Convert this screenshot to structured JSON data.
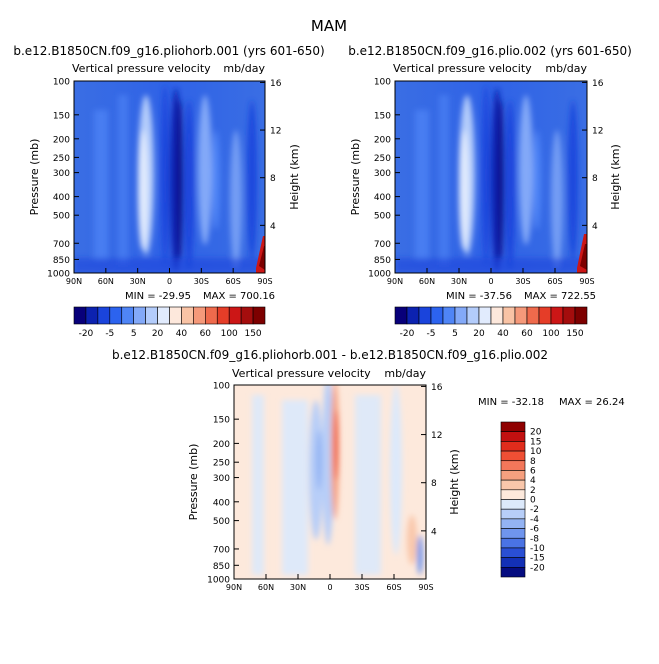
{
  "figure_title": "MAM",
  "colorbar_small": {
    "labels": [
      "-20",
      "-5",
      "5",
      "20",
      "40",
      "60",
      "100",
      "150"
    ],
    "colors": [
      "#08007a",
      "#0c22b0",
      "#1a44dc",
      "#2c63ef",
      "#4f85f6",
      "#83a9f8",
      "#b3ccfb",
      "#e1ebfd",
      "#fde8dc",
      "#f9c3a5",
      "#f5997a",
      "#ef6a4c",
      "#e53d28",
      "#cc1616",
      "#a40d0d",
      "#7d0000"
    ]
  },
  "colorbar_diff": {
    "labels": [
      "20",
      "15",
      "10",
      "8",
      "6",
      "4",
      "2",
      "0",
      "-2",
      "-4",
      "-6",
      "-8",
      "-10",
      "-15",
      "-20"
    ],
    "colors": [
      "#8f0000",
      "#c21010",
      "#e02c1c",
      "#ef4f34",
      "#f3775a",
      "#f6a07f",
      "#f9c7ab",
      "#fde9dc",
      "#dce9fb",
      "#b7cef8",
      "#93b3f3",
      "#6f95ee",
      "#4a73e4",
      "#2a4fd4",
      "#1330b6",
      "#050c80"
    ]
  },
  "chart_data": [
    {
      "type": "heatmap",
      "title": "b.e12.B1850CN.f09_g16.pliohorb.001 (yrs 601-650)",
      "subtitle": "Vertical pressure velocity",
      "units": "mb/day",
      "xlabel": "",
      "ylabel": "Pressure (mb)",
      "ylabel_right": "Height (km)",
      "x_ticks": [
        "90N",
        "60N",
        "30N",
        "0",
        "30S",
        "60S",
        "90S"
      ],
      "y_ticks": [
        100,
        150,
        200,
        250,
        300,
        400,
        500,
        700,
        850,
        1000
      ],
      "y_right_ticks": [
        4,
        8,
        12,
        16
      ],
      "min_label": "MIN = -29.95",
      "max_label": "MAX = 700.16",
      "min": -29.95,
      "max": 700.16,
      "ylim": [
        1000,
        100
      ],
      "scale_y": "log"
    },
    {
      "type": "heatmap",
      "title": "b.e12.B1850CN.f09_g16.plio.002 (yrs 601-650)",
      "subtitle": "Vertical pressure velocity",
      "units": "mb/day",
      "xlabel": "",
      "ylabel": "Pressure (mb)",
      "ylabel_right": "Height (km)",
      "x_ticks": [
        "90N",
        "60N",
        "30N",
        "0",
        "30S",
        "60S",
        "90S"
      ],
      "y_ticks": [
        100,
        150,
        200,
        250,
        300,
        400,
        500,
        700,
        850,
        1000
      ],
      "y_right_ticks": [
        4,
        8,
        12,
        16
      ],
      "min_label": "MIN = -37.56",
      "max_label": "MAX = 722.55",
      "min": -37.56,
      "max": 722.55,
      "ylim": [
        1000,
        100
      ],
      "scale_y": "log"
    },
    {
      "type": "heatmap",
      "title": "b.e12.B1850CN.f09_g16.pliohorb.001 - b.e12.B1850CN.f09_g16.plio.002",
      "subtitle": "Vertical pressure velocity",
      "units": "mb/day",
      "xlabel": "",
      "ylabel": "Pressure (mb)",
      "ylabel_right": "Height (km)",
      "x_ticks": [
        "90N",
        "60N",
        "30N",
        "0",
        "30S",
        "60S",
        "90S"
      ],
      "y_ticks": [
        100,
        150,
        200,
        250,
        300,
        400,
        500,
        700,
        850,
        1000
      ],
      "y_right_ticks": [
        4,
        8,
        12,
        16
      ],
      "min_label": "MIN = -32.18",
      "max_label": "MAX =  26.24",
      "min": -32.18,
      "max": 26.24,
      "ylim": [
        1000,
        100
      ],
      "scale_y": "log"
    }
  ]
}
